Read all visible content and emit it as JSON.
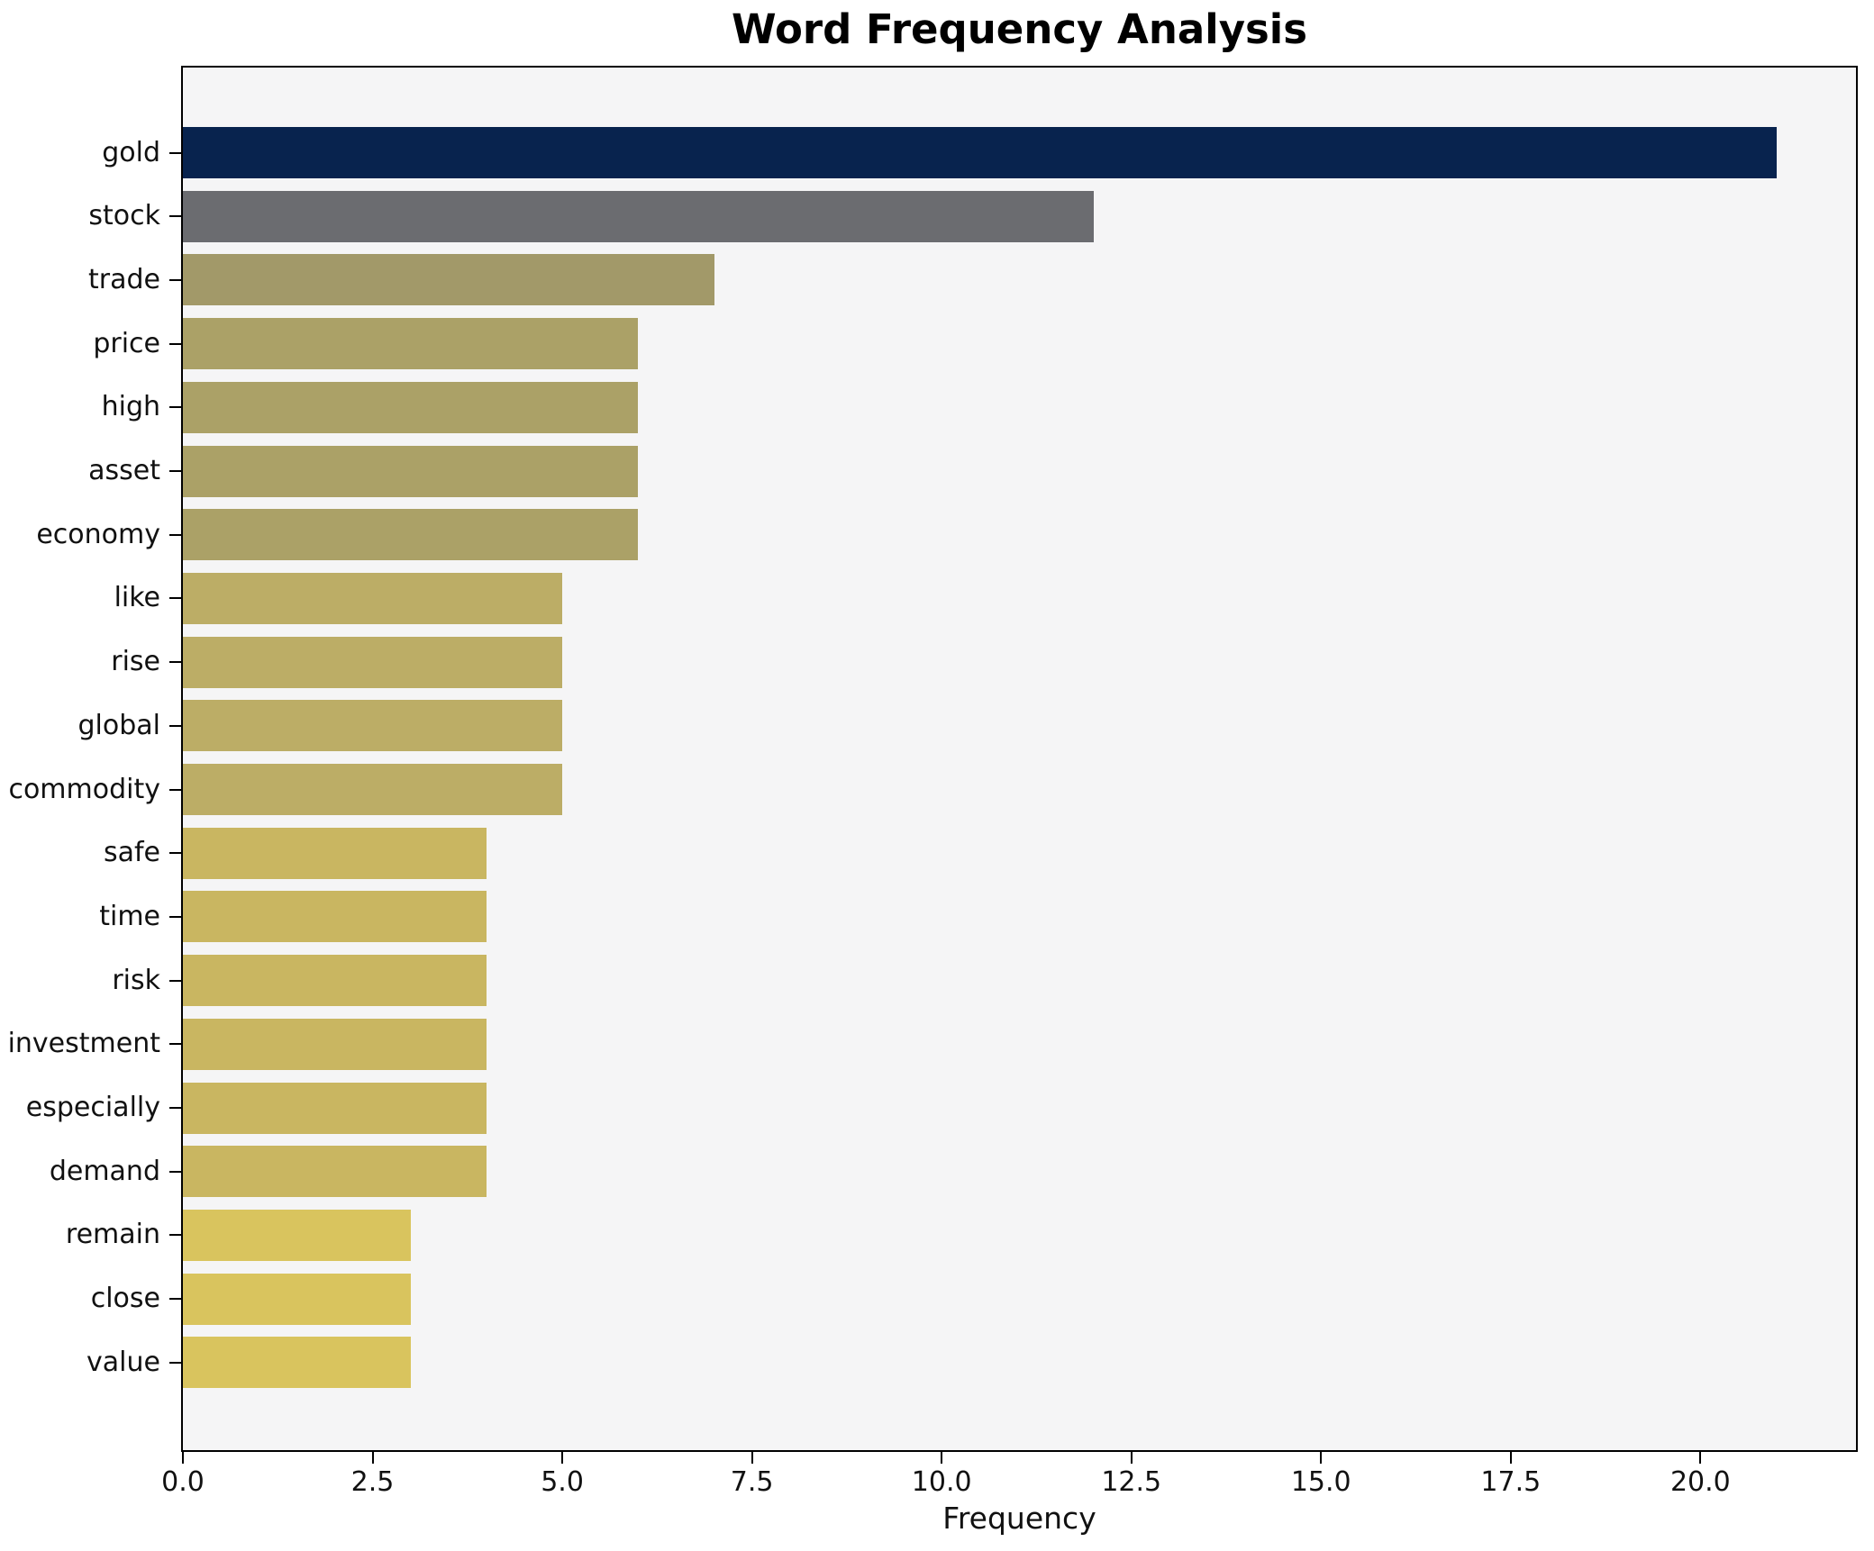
{
  "title": "Word Frequency Analysis",
  "xlabel": "Frequency",
  "chart_data": {
    "type": "bar",
    "orientation": "horizontal",
    "title": "Word Frequency Analysis",
    "xlabel": "Frequency",
    "ylabel": "",
    "categories": [
      "gold",
      "stock",
      "trade",
      "price",
      "high",
      "asset",
      "economy",
      "like",
      "rise",
      "global",
      "commodity",
      "safe",
      "time",
      "risk",
      "investment",
      "especially",
      "demand",
      "remain",
      "close",
      "value"
    ],
    "values": [
      21,
      12,
      7,
      6,
      6,
      6,
      6,
      5,
      5,
      5,
      5,
      4,
      4,
      4,
      4,
      4,
      4,
      3,
      3,
      3
    ],
    "bar_colors": [
      "#08234e",
      "#6b6c70",
      "#a29969",
      "#aba167",
      "#aba167",
      "#aba167",
      "#aba167",
      "#bcad66",
      "#bcad66",
      "#bcad66",
      "#bcad66",
      "#c9b661",
      "#c9b661",
      "#c9b661",
      "#c9b661",
      "#c9b661",
      "#c9b661",
      "#d9c45e",
      "#d9c45e",
      "#d9c45e"
    ],
    "xlim": [
      0,
      22.05
    ],
    "xticks": [
      0.0,
      2.5,
      5.0,
      7.5,
      10.0,
      12.5,
      15.0,
      17.5,
      20.0
    ],
    "xtick_labels": [
      "0.0",
      "2.5",
      "5.0",
      "7.5",
      "10.0",
      "12.5",
      "15.0",
      "17.5",
      "20.0"
    ],
    "grid": false,
    "legend": null,
    "plot_bg": "#f5f5f6",
    "fig_bg": "#ffffff",
    "spine_color": "#000000"
  }
}
